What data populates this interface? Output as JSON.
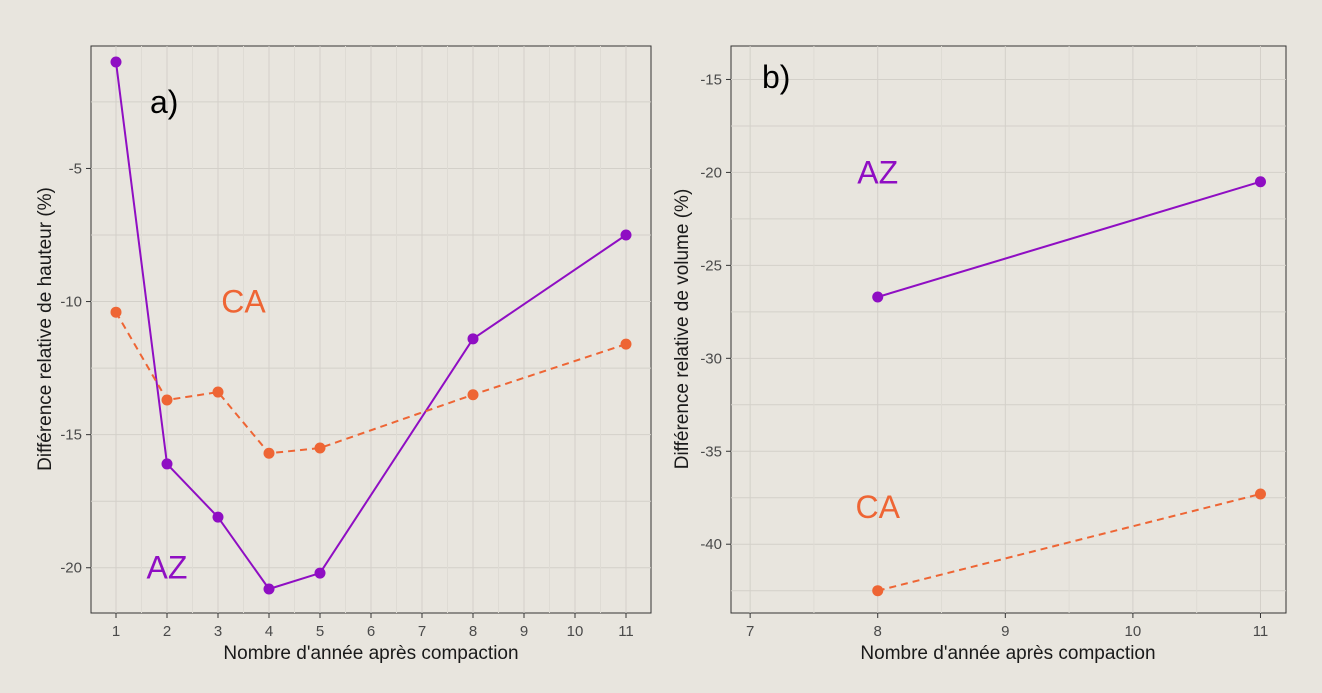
{
  "chart_data": [
    {
      "type": "line",
      "panel_label": "a)",
      "xlabel": "Nombre d'année après compaction",
      "ylabel": "Différence relative de hauteur (%)",
      "x_ticks": [
        "1",
        "2",
        "3",
        "4",
        "5",
        "6",
        "7",
        "8",
        "9",
        "10",
        "11"
      ],
      "y_ticks": [
        "-5",
        "-10",
        "-15",
        "-20"
      ],
      "xlim": [
        1,
        11
      ],
      "ylim": [
        -21.7,
        -0.4
      ],
      "grid": true,
      "annotations": [
        {
          "text": "CA",
          "x": 3.5,
          "y": -10,
          "color": "#ee6534"
        },
        {
          "text": "AZ",
          "x": 2,
          "y": -20,
          "color": "#8f0ec3"
        }
      ],
      "series": [
        {
          "color": "#8f0ec3",
          "linestyle": "solid",
          "x": [
            1,
            2,
            3,
            4,
            5,
            8,
            11
          ],
          "y": [
            -1.0,
            -16.1,
            -18.1,
            -20.8,
            -20.2,
            -11.4,
            -7.5
          ]
        },
        {
          "color": "#ee6534",
          "linestyle": "dashed",
          "x": [
            1,
            2,
            3,
            4,
            5,
            8,
            11
          ],
          "y": [
            -10.4,
            -13.7,
            -13.4,
            -15.7,
            -15.5,
            -13.5,
            -11.6
          ]
        }
      ]
    },
    {
      "type": "line",
      "panel_label": "b)",
      "xlabel": "Nombre d'année après compaction",
      "ylabel": "Différence relative de volume (%)",
      "x_ticks": [
        "7",
        "8",
        "9",
        "10",
        "11"
      ],
      "y_ticks": [
        "-15",
        "-20",
        "-25",
        "-30",
        "-35",
        "-40"
      ],
      "xlim": [
        6.85,
        11.2
      ],
      "ylim": [
        -43.7,
        -13.2
      ],
      "grid": true,
      "annotations": [
        {
          "text": "AZ",
          "x": 8,
          "y": -20,
          "color": "#8f0ec3"
        },
        {
          "text": "CA",
          "x": 8,
          "y": -38,
          "color": "#ee6534"
        }
      ],
      "series": [
        {
          "color": "#8f0ec3",
          "linestyle": "solid",
          "x": [
            8,
            11
          ],
          "y": [
            -26.7,
            -20.5
          ]
        },
        {
          "color": "#ee6534",
          "linestyle": "dashed",
          "x": [
            8,
            11
          ],
          "y": [
            -42.5,
            -37.3
          ]
        }
      ]
    }
  ]
}
